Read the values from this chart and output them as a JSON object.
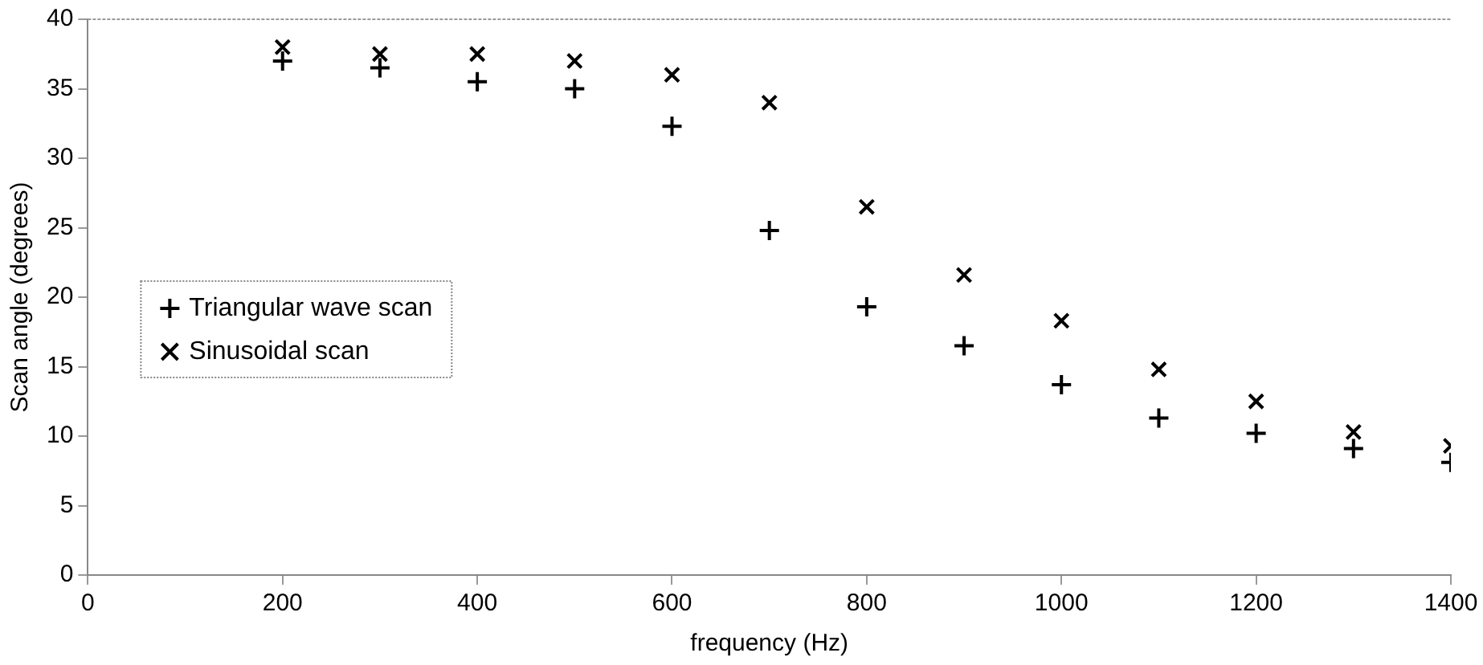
{
  "chart_data": {
    "type": "scatter",
    "xlabel": "frequency (Hz)",
    "ylabel": "Scan angle (degrees)",
    "x": [
      200,
      300,
      400,
      500,
      600,
      700,
      800,
      900,
      1000,
      1100,
      1200,
      1300,
      1400
    ],
    "series": [
      {
        "name": "Triangular wave scan",
        "color": "#000000",
        "marker": "plus",
        "values": [
          37,
          36.5,
          35.5,
          35,
          32.3,
          24.8,
          19.3,
          16.5,
          13.7,
          11.3,
          10.2,
          9.1,
          8.1
        ]
      },
      {
        "name": "Sinusoidal scan",
        "color": "#000000",
        "marker": "cross",
        "values": [
          38,
          37.5,
          37.5,
          37,
          36,
          34,
          26.5,
          21.6,
          18.3,
          14.8,
          12.5,
          10.3,
          9.3
        ]
      }
    ],
    "xlim": [
      0,
      1400
    ],
    "xticks": [
      0,
      200,
      400,
      600,
      800,
      1000,
      1200,
      1400
    ],
    "ylim": [
      0,
      40
    ],
    "yticks": [
      0,
      5,
      10,
      15,
      20,
      25,
      30,
      35,
      40
    ],
    "grid": false,
    "legend": "left"
  }
}
